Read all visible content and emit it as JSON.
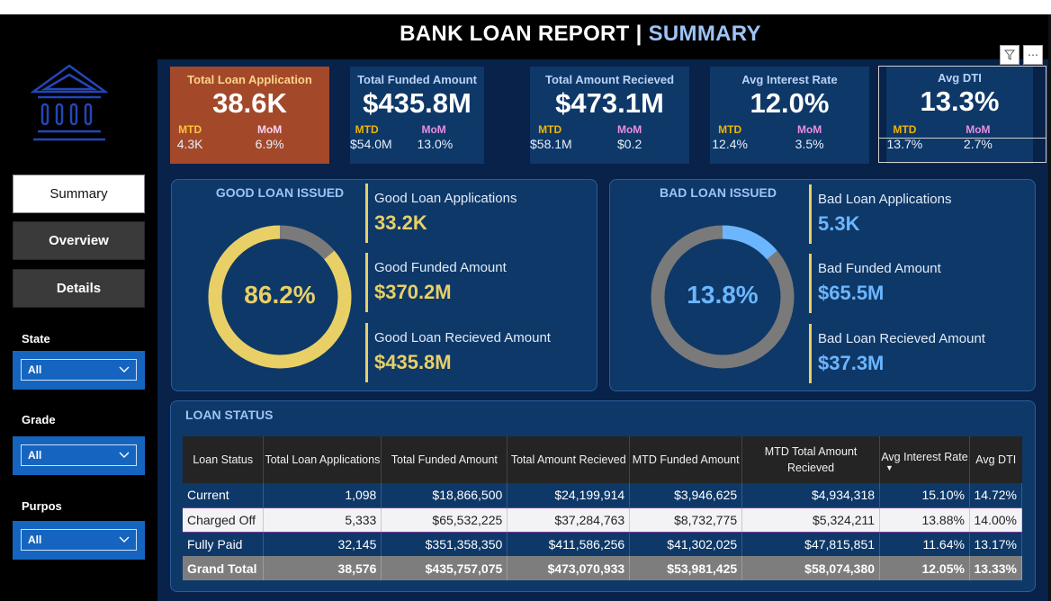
{
  "title": {
    "main": "BANK LOAN REPORT | ",
    "accent": "SUMMARY"
  },
  "colors": {
    "background": "#08224a",
    "card": "#0e3868",
    "highlight": "#a3492a",
    "good": "#e8d067",
    "bad": "#6cb6ff",
    "accent_text": "#9ec3f5"
  },
  "sidebar": {
    "logo_icon": "bank-building-icon",
    "nav": [
      {
        "label": "Summary",
        "active": true
      },
      {
        "label": "Overview",
        "active": false
      },
      {
        "label": "Details",
        "active": false
      }
    ],
    "slicers": [
      {
        "label": "State",
        "value": "All"
      },
      {
        "label": "Grade",
        "value": "All"
      },
      {
        "label": "Purpos",
        "value": "All"
      }
    ]
  },
  "visual_icons": [
    "filter-icon",
    "more-options-icon"
  ],
  "kpis": [
    {
      "title": "Total Loan Application",
      "value": "38.6K",
      "mtd_label": "MTD",
      "mtd": "4.3K",
      "mom_label": "MoM",
      "mom": "6.9%"
    },
    {
      "title": "Total Funded Amount",
      "value": "$435.8M",
      "mtd_label": "MTD",
      "mtd": "$54.0M",
      "mom_label": "MoM",
      "mom": "13.0%"
    },
    {
      "title": "Total Amount Recieved",
      "value": "$473.1M",
      "mtd_label": "MTD",
      "mtd": "$58.1M",
      "mom_label": "MoM",
      "mom": "$0.2"
    },
    {
      "title": "Avg Interest Rate",
      "value": "12.0%",
      "mtd_label": "MTD",
      "mtd": "12.4%",
      "mom_label": "MoM",
      "mom": "3.5%"
    },
    {
      "title": "Avg DTI",
      "value": "13.3%",
      "mtd_label": "MTD",
      "mtd": "13.7%",
      "mom_label": "MoM",
      "mom": "2.7%"
    }
  ],
  "good_loan": {
    "title": "GOOD LOAN ISSUED",
    "percent_label": "86.2%",
    "percent": 86.2,
    "metrics": [
      {
        "title": "Good Loan Applications",
        "value": "33.2K"
      },
      {
        "title": "Good Funded Amount",
        "value": "$370.2M"
      },
      {
        "title": "Good Loan Recieved Amount",
        "value": "$435.8M"
      }
    ]
  },
  "bad_loan": {
    "title": "BAD LOAN ISSUED",
    "percent_label": "13.8%",
    "percent": 13.8,
    "metrics": [
      {
        "title": "Bad Loan Applications",
        "value": "5.3K"
      },
      {
        "title": "Bad Funded Amount",
        "value": "$65.5M"
      },
      {
        "title": "Bad Loan Recieved Amount",
        "value": "$37.3M"
      }
    ]
  },
  "loan_status": {
    "title": "LOAN STATUS",
    "columns": [
      "Loan Status",
      "Total Loan Applications",
      "Total Funded Amount",
      "Total Amount Recieved",
      "MTD Funded Amount",
      "MTD Total Amount Recieved",
      "Avg Interest Rate",
      "Avg DTI"
    ],
    "rows": [
      [
        "Current",
        "1,098",
        "$18,866,500",
        "$24,199,914",
        "$3,946,625",
        "$4,934,318",
        "15.10%",
        "14.72%"
      ],
      [
        "Charged Off",
        "5,333",
        "$65,532,225",
        "$37,284,763",
        "$8,732,775",
        "$5,324,211",
        "13.88%",
        "14.00%"
      ],
      [
        "Fully Paid",
        "32,145",
        "$351,358,350",
        "$411,586,256",
        "$41,302,025",
        "$47,815,851",
        "11.64%",
        "13.17%"
      ]
    ],
    "total": [
      "Grand Total",
      "38,576",
      "$435,757,075",
      "$473,070,933",
      "$53,981,425",
      "$58,074,380",
      "12.05%",
      "13.33%"
    ]
  }
}
